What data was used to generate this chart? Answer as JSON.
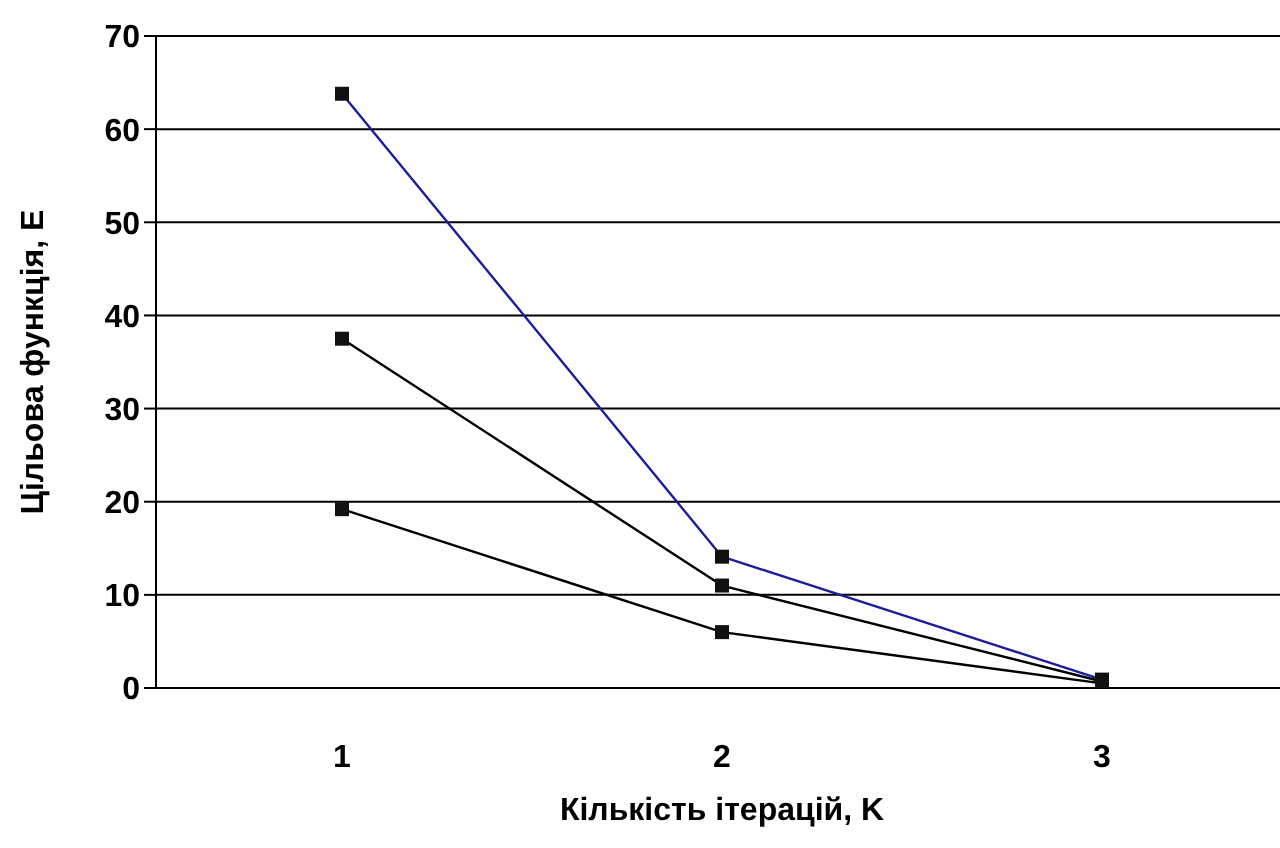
{
  "chart_data": {
    "type": "line",
    "xlabel": "Кількість ітерацій, K",
    "ylabel": "Цільова функція, E",
    "categories": [
      "1",
      "2",
      "3"
    ],
    "series": [
      {
        "color": "#1c1c9c",
        "values": [
          63.8,
          14.1,
          0.9
        ]
      },
      {
        "color": "#000000",
        "values": [
          37.5,
          11,
          0.7
        ]
      },
      {
        "color": "#000000",
        "values": [
          19.2,
          6,
          0.5
        ]
      }
    ],
    "ylim": [
      0,
      70
    ],
    "yticks": [
      0,
      10,
      20,
      30,
      40,
      50,
      60,
      70
    ],
    "grid": "y",
    "marker": "square",
    "line_style": "solid",
    "legend": false
  }
}
